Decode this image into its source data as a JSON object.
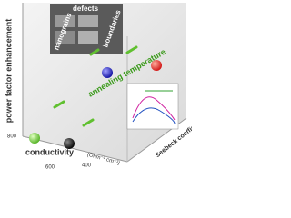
{
  "axes": {
    "y_label": "power factor enhancement",
    "x_label": "conductivity",
    "x_unit": "(Ohm⁻¹ cm⁻¹)",
    "z_label": "Seebeck coefficient (mV/K)",
    "ticks": [
      "800",
      "600",
      "400"
    ]
  },
  "annotations": {
    "nanograins": "nanograins",
    "defects": "defects",
    "boundaries": "boundaries",
    "process": "annealing temperature"
  }
}
